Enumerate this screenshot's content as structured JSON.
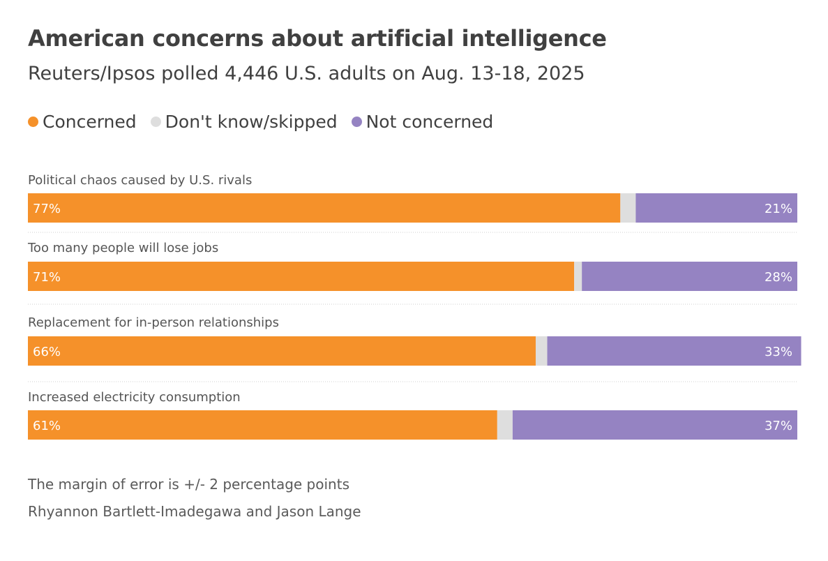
{
  "header": {
    "title": "American concerns about artificial intelligence",
    "subtitle": "Reuters/Ipsos polled 4,446 U.S. adults on Aug. 13-18, 2025"
  },
  "legend": {
    "items": [
      {
        "label": "Concerned",
        "color": "#f5912a"
      },
      {
        "label": "Don't know/skipped",
        "color": "#dedede"
      },
      {
        "label": "Not concerned",
        "color": "#9583c2"
      }
    ]
  },
  "chart_data": {
    "type": "bar",
    "orientation": "horizontal",
    "stacked": true,
    "categories": [
      "Political chaos caused by U.S. rivals",
      "Too many people will lose jobs",
      "Replacement for in-person relationships",
      "Increased electricity consumption"
    ],
    "series": [
      {
        "name": "Concerned",
        "values": [
          77,
          71,
          66,
          61
        ],
        "labels": [
          "77%",
          "71%",
          "66%",
          "61%"
        ],
        "color": "#f5912a"
      },
      {
        "name": "Don't know/skipped",
        "values": [
          2,
          1,
          1.5,
          2
        ],
        "color": "#dedede"
      },
      {
        "name": "Not concerned",
        "values": [
          21,
          28,
          33,
          37
        ],
        "labels": [
          "21%",
          "28%",
          "33%",
          "37%"
        ],
        "color": "#9583c2"
      }
    ],
    "xlim": [
      0,
      100
    ],
    "legend_position": "top-left"
  },
  "footer": {
    "note": "The margin of error is +/- 2 percentage points",
    "credit": "Rhyannon Bartlett-Imadegawa and Jason Lange"
  }
}
